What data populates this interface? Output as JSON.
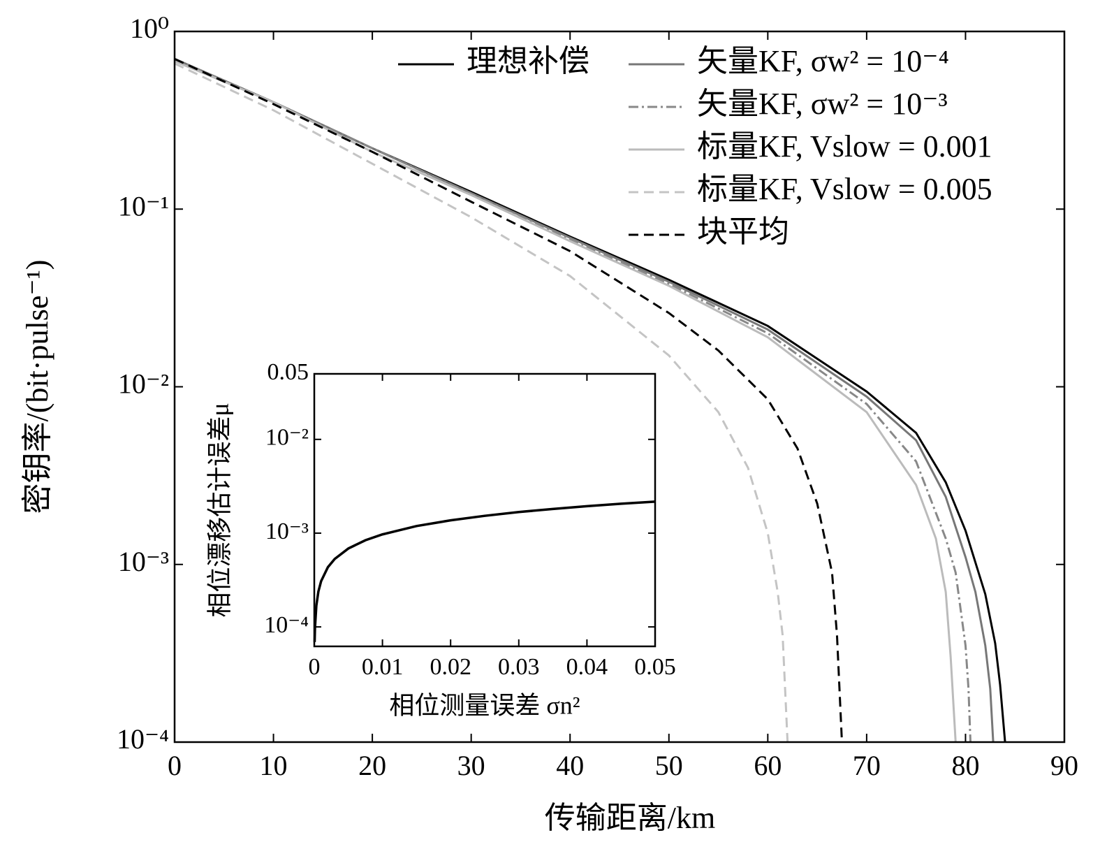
{
  "chart_data": [
    {
      "type": "line",
      "x_label": "传输距离/km",
      "y_label": "密钥率/(bit·pulse⁻¹)",
      "xlim": [
        0,
        90
      ],
      "ylim": [
        0.0001,
        1
      ],
      "log_y": true,
      "xticks": [
        0,
        10,
        20,
        30,
        40,
        50,
        60,
        70,
        80,
        90
      ],
      "yticks": [
        {
          "value": 0.0001,
          "label": "10⁻⁴"
        },
        {
          "value": 0.001,
          "label": "10⁻³"
        },
        {
          "value": 0.01,
          "label": "10⁻²"
        },
        {
          "value": 0.1,
          "label": "10⁻¹"
        },
        {
          "value": 1,
          "label": "10⁰"
        }
      ],
      "legend": "upper right",
      "series": [
        {
          "name": "理想补偿",
          "color": "#000000",
          "dash": "solid",
          "x": [
            0,
            10,
            20,
            30,
            40,
            50,
            60,
            70,
            75,
            78,
            80,
            82,
            83,
            83.5,
            84
          ],
          "values": [
            0.7,
            0.4,
            0.22,
            0.125,
            0.07,
            0.04,
            0.022,
            0.0094,
            0.0055,
            0.0029,
            0.00155,
            0.00068,
            0.00036,
            0.00021,
            0.0001
          ]
        },
        {
          "name": "矢量KF, σw² = 10⁻⁴",
          "color": "#777777",
          "dash": "solid",
          "x": [
            0,
            10,
            20,
            30,
            40,
            50,
            60,
            70,
            75,
            78,
            80,
            81,
            82,
            82.5,
            82.8
          ],
          "values": [
            0.7,
            0.4,
            0.22,
            0.123,
            0.069,
            0.039,
            0.021,
            0.0088,
            0.005,
            0.0024,
            0.0011,
            0.0007,
            0.00035,
            0.0002,
            0.0001
          ]
        },
        {
          "name": "矢量KF, σw² = 10⁻³",
          "color": "#888888",
          "dash": "dashdot",
          "x": [
            0,
            10,
            20,
            30,
            40,
            50,
            60,
            70,
            75,
            78,
            79,
            80,
            80.3,
            80.5
          ],
          "values": [
            0.7,
            0.4,
            0.22,
            0.122,
            0.068,
            0.038,
            0.02,
            0.008,
            0.0038,
            0.0014,
            0.0009,
            0.00035,
            0.0002,
            0.0001
          ]
        },
        {
          "name": "标量KF, Vslow = 0.001",
          "color": "#bbbbbb",
          "dash": "solid",
          "x": [
            0,
            10,
            20,
            30,
            40,
            50,
            60,
            70,
            75,
            77,
            78,
            78.5,
            79
          ],
          "values": [
            0.68,
            0.4,
            0.21,
            0.12,
            0.066,
            0.037,
            0.019,
            0.0072,
            0.0028,
            0.0014,
            0.0007,
            0.0003,
            0.0001
          ]
        },
        {
          "name": "标量KF, Vslow = 0.005",
          "color": "#c4c4c4",
          "dash": "dashed",
          "x": [
            0,
            10,
            20,
            30,
            40,
            50,
            55,
            58,
            60,
            61,
            61.5,
            62
          ],
          "values": [
            0.66,
            0.36,
            0.18,
            0.09,
            0.042,
            0.015,
            0.0072,
            0.0035,
            0.0015,
            0.0007,
            0.0004,
            0.0001
          ]
        },
        {
          "name": "块平均",
          "color": "#000000",
          "dash": "dashed",
          "x": [
            0,
            10,
            20,
            30,
            40,
            50,
            55,
            60,
            63,
            65,
            66.5,
            67,
            67.5
          ],
          "values": [
            0.7,
            0.39,
            0.21,
            0.11,
            0.058,
            0.026,
            0.016,
            0.0085,
            0.0045,
            0.0022,
            0.0009,
            0.0004,
            0.0001
          ]
        }
      ]
    },
    {
      "type": "line",
      "x_label": "相位测量误差 σn²",
      "y_label": "相位漂移估计误差μ",
      "xlim": [
        0,
        0.05
      ],
      "ylim": [
        6.2e-05,
        0.05
      ],
      "log_y": true,
      "xticks": [
        0,
        0.01,
        0.02,
        0.03,
        0.04,
        0.05
      ],
      "yticks": [
        {
          "value": 0.0001,
          "label": "10⁻⁴"
        },
        {
          "value": 0.001,
          "label": "10⁻³"
        },
        {
          "value": 0.01,
          "label": "10⁻²"
        },
        0.05
      ],
      "series": [
        {
          "color": "#000000",
          "dash": "solid",
          "x": [
            5e-05,
            0.0001,
            0.0003,
            0.0006,
            0.001,
            0.002,
            0.003,
            0.005,
            0.0075,
            0.01,
            0.015,
            0.02,
            0.025,
            0.03,
            0.035,
            0.04,
            0.045,
            0.05
          ],
          "values": [
            6.9e-05,
            9.7e-05,
            0.000168,
            0.000238,
            0.000307,
            0.000434,
            0.000531,
            0.000686,
            0.00084,
            0.00097,
            0.00119,
            0.00137,
            0.00153,
            0.00168,
            0.00181,
            0.00194,
            0.00206,
            0.00217
          ]
        }
      ]
    }
  ]
}
